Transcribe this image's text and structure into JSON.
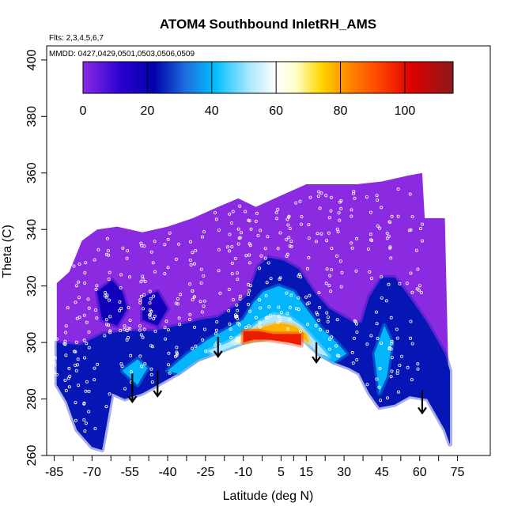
{
  "chart_data": {
    "type": "heatmap",
    "title": "ATOM4 Southbound InletRH_AMS",
    "flights_note": "Flts: 2,3,4,5,6,7",
    "dates_note": "MMDD: 0427,0429,0501,0503,0506,0509",
    "xlabel": "Latitude (deg N)",
    "ylabel": "Theta (C)",
    "xlim": [
      -88,
      88
    ],
    "ylim": [
      260,
      405
    ],
    "x_ticks": [
      -85,
      -70,
      -55,
      -40,
      -25,
      -10,
      5,
      15,
      30,
      45,
      60,
      75
    ],
    "y_ticks": [
      260,
      280,
      300,
      320,
      340,
      360,
      380,
      400
    ],
    "colorbar": {
      "min": 0,
      "max": 115,
      "ticks": [
        0,
        20,
        40,
        60,
        80,
        100
      ],
      "stops": [
        {
          "v": 0,
          "c": "#8a2be2"
        },
        {
          "v": 12,
          "c": "#2a00d0"
        },
        {
          "v": 22,
          "c": "#0000aa"
        },
        {
          "v": 32,
          "c": "#1e6fe0"
        },
        {
          "v": 41,
          "c": "#00bfff"
        },
        {
          "v": 52,
          "c": "#b0e8ff"
        },
        {
          "v": 60,
          "c": "#ffffff"
        },
        {
          "v": 66,
          "c": "#ffffcc"
        },
        {
          "v": 74,
          "c": "#ffd700"
        },
        {
          "v": 82,
          "c": "#ff8c00"
        },
        {
          "v": 92,
          "c": "#ff4500"
        },
        {
          "v": 102,
          "c": "#dd0000"
        },
        {
          "v": 115,
          "c": "#8b1a1a"
        }
      ]
    },
    "field": {
      "upper_boundary": [
        [
          -84,
          321
        ],
        [
          -79,
          325
        ],
        [
          -74,
          336
        ],
        [
          -68,
          340
        ],
        [
          -60,
          341
        ],
        [
          -50,
          339
        ],
        [
          -40,
          341
        ],
        [
          -30,
          344
        ],
        [
          -20,
          348
        ],
        [
          -12,
          351
        ],
        [
          -5,
          348
        ],
        [
          5,
          352
        ],
        [
          15,
          356
        ],
        [
          25,
          356
        ],
        [
          35,
          356
        ],
        [
          45,
          357
        ],
        [
          55,
          359
        ],
        [
          61,
          360
        ],
        [
          62,
          344
        ],
        [
          70,
          344
        ]
      ],
      "lower_boundary": [
        [
          -84,
          285
        ],
        [
          -80,
          279
        ],
        [
          -76,
          269
        ],
        [
          -70,
          263
        ],
        [
          -66,
          262
        ],
        [
          -62,
          282
        ],
        [
          -57,
          280
        ],
        [
          -50,
          282
        ],
        [
          -44,
          285
        ],
        [
          -36,
          289
        ],
        [
          -28,
          294
        ],
        [
          -22,
          296
        ],
        [
          -16,
          298
        ],
        [
          -10,
          300
        ],
        [
          -4,
          301
        ],
        [
          4,
          302
        ],
        [
          14,
          301
        ],
        [
          20,
          296
        ],
        [
          26,
          293
        ],
        [
          32,
          291
        ],
        [
          36,
          289
        ],
        [
          40,
          282
        ],
        [
          44,
          277
        ],
        [
          50,
          278
        ],
        [
          56,
          281
        ],
        [
          63,
          280
        ],
        [
          70,
          269
        ],
        [
          72,
          264
        ]
      ],
      "regions": [
        {
          "value": 24,
          "points": [
            [
              -84,
              300
            ],
            [
              -75,
              299
            ],
            [
              -66,
              303
            ],
            [
              -56,
              304
            ],
            [
              -46,
              304
            ],
            [
              -36,
              306
            ],
            [
              -27,
              308
            ],
            [
              -20,
              309
            ],
            [
              -13,
              313
            ],
            [
              -8,
              317
            ],
            [
              -4,
              327
            ],
            [
              0,
              330
            ],
            [
              6,
              329
            ],
            [
              12,
              326
            ],
            [
              18,
              318
            ],
            [
              24,
              312
            ],
            [
              30,
              309
            ],
            [
              34,
              307
            ],
            [
              37,
              307
            ],
            [
              40,
              316
            ],
            [
              45,
              323
            ],
            [
              50,
              323
            ],
            [
              56,
              316
            ],
            [
              63,
              307
            ],
            [
              70,
              296
            ],
            [
              72,
              290
            ],
            [
              72,
              264
            ],
            [
              70,
              269
            ],
            [
              63,
              280
            ],
            [
              56,
              281
            ],
            [
              50,
              278
            ],
            [
              44,
              277
            ],
            [
              40,
              282
            ],
            [
              36,
              289
            ],
            [
              32,
              291
            ],
            [
              26,
              293
            ],
            [
              20,
              296
            ],
            [
              14,
              301
            ],
            [
              4,
              302
            ],
            [
              -4,
              301
            ],
            [
              -10,
              300
            ],
            [
              -16,
              298
            ],
            [
              -22,
              296
            ],
            [
              -28,
              294
            ],
            [
              -36,
              289
            ],
            [
              -44,
              285
            ],
            [
              -50,
              282
            ],
            [
              -57,
              280
            ],
            [
              -62,
              282
            ],
            [
              -66,
              262
            ],
            [
              -70,
              263
            ],
            [
              -76,
              269
            ],
            [
              -80,
              279
            ],
            [
              -84,
              285
            ]
          ]
        },
        {
          "value": 18,
          "points": [
            [
              -68,
              318
            ],
            [
              -62,
              322
            ],
            [
              -58,
              318
            ],
            [
              -56,
              312
            ],
            [
              -60,
              306
            ],
            [
              -66,
              308
            ]
          ]
        },
        {
          "value": 18,
          "points": [
            [
              -50,
              316
            ],
            [
              -44,
              318
            ],
            [
              -40,
              312
            ],
            [
              -44,
              306
            ],
            [
              -50,
              308
            ]
          ]
        },
        {
          "value": 40,
          "points": [
            [
              -40,
              290
            ],
            [
              -32,
              296
            ],
            [
              -24,
              301
            ],
            [
              -16,
              305
            ],
            [
              -10,
              308
            ],
            [
              -6,
              314
            ],
            [
              -2,
              318
            ],
            [
              4,
              320
            ],
            [
              10,
              318
            ],
            [
              15,
              312
            ],
            [
              21,
              305
            ],
            [
              27,
              300
            ],
            [
              31,
              296
            ],
            [
              26,
              293
            ],
            [
              20,
              296
            ],
            [
              14,
              301
            ],
            [
              4,
              302
            ],
            [
              -4,
              301
            ],
            [
              -10,
              300
            ],
            [
              -16,
              298
            ],
            [
              -22,
              296
            ],
            [
              -28,
              294
            ],
            [
              -36,
              289
            ]
          ]
        },
        {
          "value": 40,
          "points": [
            [
              42,
              296
            ],
            [
              46,
              306
            ],
            [
              49,
              300
            ],
            [
              47,
              288
            ],
            [
              44,
              282
            ]
          ]
        },
        {
          "value": 40,
          "points": [
            [
              -58,
              290
            ],
            [
              -52,
              294
            ],
            [
              -48,
              291
            ],
            [
              -52,
              285
            ]
          ]
        },
        {
          "value": 52,
          "points": [
            [
              -24,
              297
            ],
            [
              -16,
              300
            ],
            [
              -10,
              303
            ],
            [
              -4,
              307
            ],
            [
              2,
              310
            ],
            [
              8,
              309
            ],
            [
              13,
              306
            ],
            [
              19,
              300
            ],
            [
              24,
              295
            ],
            [
              20,
              296
            ],
            [
              14,
              301
            ],
            [
              4,
              302
            ],
            [
              -4,
              301
            ],
            [
              -10,
              300
            ],
            [
              -16,
              298
            ],
            [
              -22,
              296
            ]
          ]
        },
        {
          "value": 66,
          "points": [
            [
              -14,
              300
            ],
            [
              -10,
              303
            ],
            [
              -2,
              304
            ],
            [
              6,
              306
            ],
            [
              12,
              304
            ],
            [
              16,
              300
            ],
            [
              14,
              301
            ],
            [
              4,
              302
            ],
            [
              -4,
              301
            ],
            [
              -10,
              300
            ]
          ]
        },
        {
          "value": 78,
          "points": [
            [
              -10,
              300
            ],
            [
              -10,
              304
            ],
            [
              -4,
              305
            ],
            [
              4,
              307
            ],
            [
              10,
              306
            ],
            [
              15,
              303
            ],
            [
              16,
              300
            ],
            [
              14,
              301
            ],
            [
              4,
              302
            ],
            [
              -4,
              301
            ]
          ]
        },
        {
          "value": 98,
          "points": [
            [
              -10,
              300
            ],
            [
              -10,
              304
            ],
            [
              -4,
              304
            ],
            [
              2,
              303
            ],
            [
              8,
              303
            ],
            [
              13,
              303
            ],
            [
              13,
              299
            ],
            [
              8,
              300
            ],
            [
              0,
              301
            ],
            [
              -6,
              301
            ]
          ]
        }
      ]
    },
    "arrows": [
      {
        "lat": -54,
        "theta_top": 289,
        "theta_tip": 279
      },
      {
        "lat": -44,
        "theta_top": 290,
        "theta_tip": 281
      },
      {
        "lat": -20,
        "theta_top": 302,
        "theta_tip": 295
      },
      {
        "lat": 19,
        "theta_top": 300,
        "theta_tip": 293
      },
      {
        "lat": 61,
        "theta_top": 283,
        "theta_tip": 275
      }
    ],
    "obs_points": {
      "columns": [
        -85,
        -80,
        -76,
        -72,
        -68,
        -64,
        -58,
        -55,
        -50,
        -46,
        -40,
        -36,
        -30,
        -26,
        -20,
        -15,
        -12,
        -8,
        -4,
        0,
        4,
        8,
        12,
        16,
        20,
        24,
        28,
        34,
        40,
        44,
        48,
        52,
        56,
        60
      ],
      "theta_range": [
        275,
        355
      ]
    }
  }
}
